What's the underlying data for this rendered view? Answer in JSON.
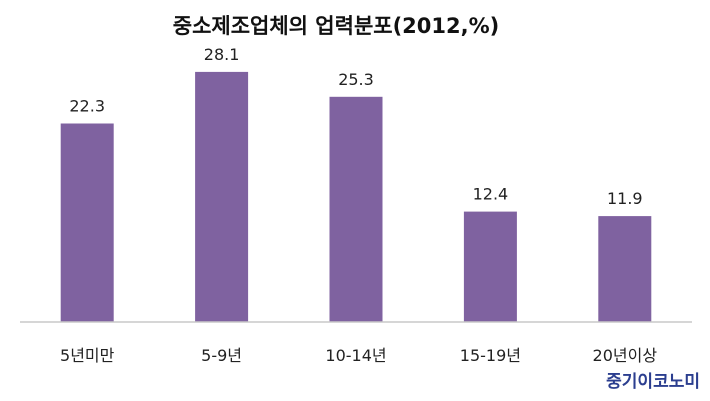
{
  "chart_data": {
    "type": "bar",
    "title": "중소제조업체의 업력분포(2012,%)",
    "categories": [
      "5년미만",
      "5-9년",
      "10-14년",
      "15-19년",
      "20년이상"
    ],
    "values": [
      22.3,
      28.1,
      25.3,
      12.4,
      11.9
    ],
    "value_labels": [
      "22.3",
      "28.1",
      "25.3",
      "12.4",
      "11.9"
    ],
    "xlabel": "",
    "ylabel": "",
    "ylim": [
      0,
      33
    ],
    "bar_color": "#7f62a0",
    "grid": false,
    "legend": "none"
  },
  "source": "중기이코노미"
}
